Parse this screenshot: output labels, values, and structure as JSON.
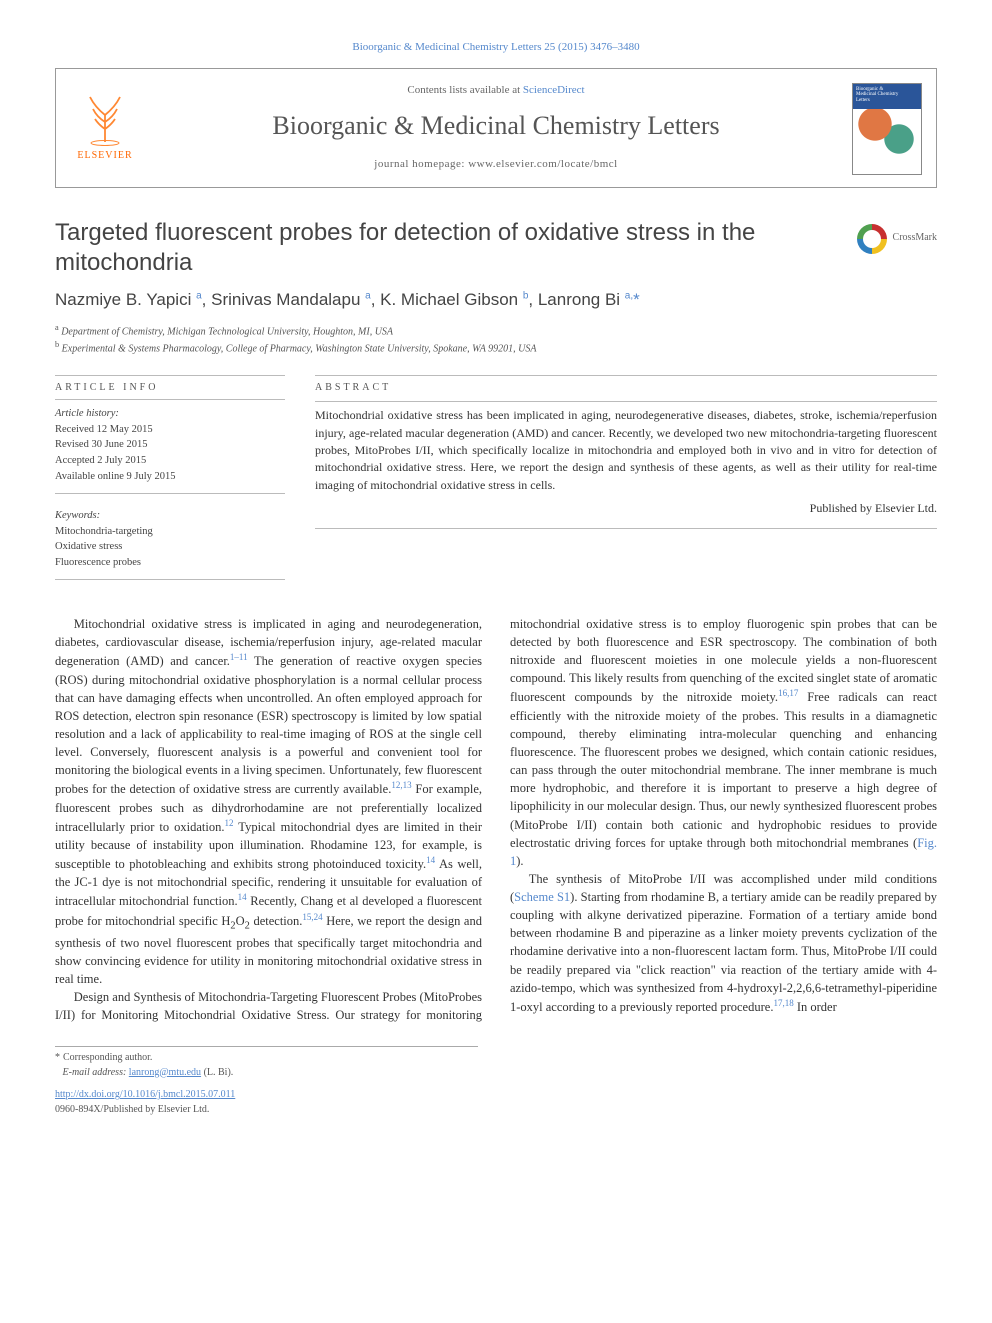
{
  "citation": "Bioorganic & Medicinal Chemistry Letters 25 (2015) 3476–3480",
  "header": {
    "contents_prefix": "Contents lists available at ",
    "contents_link": "ScienceDirect",
    "journal": "Bioorganic & Medicinal Chemistry Letters",
    "homepage_prefix": "journal homepage: ",
    "homepage_url": "www.elsevier.com/locate/bmcl",
    "elsevier": "ELSEVIER"
  },
  "article": {
    "title": "Targeted fluorescent probes for detection of oxidative stress in the mitochondria",
    "crossmark": "CrossMark",
    "authors_html": "Nazmiye B. Yapici <sup>a</sup>, Srinivas Mandalapu <sup>a</sup>, K. Michael Gibson <sup>b</sup>, Lanrong Bi <sup>a,</sup><span class='star'>*</span>",
    "affiliations": [
      {
        "sup": "a",
        "text": "Department of Chemistry, Michigan Technological University, Houghton, MI, USA"
      },
      {
        "sup": "b",
        "text": "Experimental & Systems Pharmacology, College of Pharmacy, Washington State University, Spokane, WA 99201, USA"
      }
    ]
  },
  "info": {
    "title": "ARTICLE INFO",
    "history_label": "Article history:",
    "history": [
      "Received 12 May 2015",
      "Revised 30 June 2015",
      "Accepted 2 July 2015",
      "Available online 9 July 2015"
    ],
    "keywords_label": "Keywords:",
    "keywords": [
      "Mitochondria-targeting",
      "Oxidative stress",
      "Fluorescence probes"
    ]
  },
  "abstract": {
    "title": "ABSTRACT",
    "text": "Mitochondrial oxidative stress has been implicated in aging, neurodegenerative diseases, diabetes, stroke, ischemia/reperfusion injury, age-related macular degeneration (AMD) and cancer. Recently, we developed two new mitochondria-targeting fluorescent probes, MitoProbes I/II, which specifically localize in mitochondria and employed both in vivo and in vitro for detection of mitochondrial oxidative stress. Here, we report the design and synthesis of these agents, as well as their utility for real-time imaging of mitochondrial oxidative stress in cells.",
    "publisher": "Published by Elsevier Ltd."
  },
  "body": {
    "p1": "Mitochondrial oxidative stress is implicated in aging and neurodegeneration, diabetes, cardiovascular disease, ischemia/reperfusion injury, age-related macular degeneration (AMD) and cancer.1–11 The generation of reactive oxygen species (ROS) during mitochondrial oxidative phosphorylation is a normal cellular process that can have damaging effects when uncontrolled. An often employed approach for ROS detection, electron spin resonance (ESR) spectroscopy is limited by low spatial resolution and a lack of applicability to real-time imaging of ROS at the single cell level. Conversely, fluorescent analysis is a powerful and convenient tool for monitoring the biological events in a living specimen. Unfortunately, few fluorescent probes for the detection of oxidative stress are currently available.12,13 For example, fluorescent probes such as dihydrorhodamine are not preferentially localized intracellularly prior to oxidation.12 Typical mitochondrial dyes are limited in their utility because of instability upon illumination. Rhodamine 123, for example, is susceptible to photobleaching and exhibits strong photoinduced toxicity.14 As well, the JC-1 dye is not mitochondrial specific, rendering it unsuitable for evaluation of intracellular mitochondrial function.14 Recently, Chang et al developed a fluorescent probe for mitochondrial specific H2O2 detection.15,24 Here, we report the design and synthesis of two novel fluorescent probes that specifically target mitochondria and show convincing evidence for utility in monitoring mitochondrial oxidative stress in real time.",
    "p2": "Design and Synthesis of Mitochondria-Targeting Fluorescent Probes (MitoProbes I/II) for Monitoring Mitochondrial Oxidative Stress. Our strategy for monitoring mitochondrial oxidative stress is to employ fluorogenic spin probes that can be detected by both fluorescence and ESR spectroscopy. The combination of both nitroxide and fluorescent moieties in one molecule yields a non-fluorescent compound. This likely results from quenching of the excited singlet state of aromatic fluorescent compounds by the nitroxide moiety.16,17 Free radicals can react efficiently with the nitroxide moiety of the probes. This results in a diamagnetic compound, thereby eliminating intra-molecular quenching and enhancing fluorescence. The fluorescent probes we designed, which contain cationic residues, can pass through the outer mitochondrial membrane. The inner membrane is much more hydrophobic, and therefore it is important to preserve a high degree of lipophilicity in our molecular design. Thus, our newly synthesized fluorescent probes (MitoProbe I/II) contain both cationic and hydrophobic residues to provide electrostatic driving forces for uptake through both mitochondrial membranes (Fig. 1).",
    "p3": "The synthesis of MitoProbe I/II was accomplished under mild conditions (Scheme S1). Starting from rhodamine B, a tertiary amide can be readily prepared by coupling with alkyne derivatized piperazine. Formation of a tertiary amide bond between rhodamine B and piperazine as a linker moiety prevents cyclization of the rhodamine derivative into a non-fluorescent lactam form. Thus, MitoProbe I/II could be readily prepared via \"click reaction\" via reaction of the tertiary amide with 4-azido-tempo, which was synthesized from 4-hydroxyl-2,2,6,6-tetramethyl-piperidine 1-oxyl according to a previously reported procedure.17,18 In order"
  },
  "footnotes": {
    "corresponding": "Corresponding author.",
    "email_label": "E-mail address:",
    "email": "lanrong@mtu.edu",
    "email_name": "(L. Bi)."
  },
  "bottom": {
    "doi": "http://dx.doi.org/10.1016/j.bmcl.2015.07.011",
    "issn": "0960-894X/Published by Elsevier Ltd."
  }
}
